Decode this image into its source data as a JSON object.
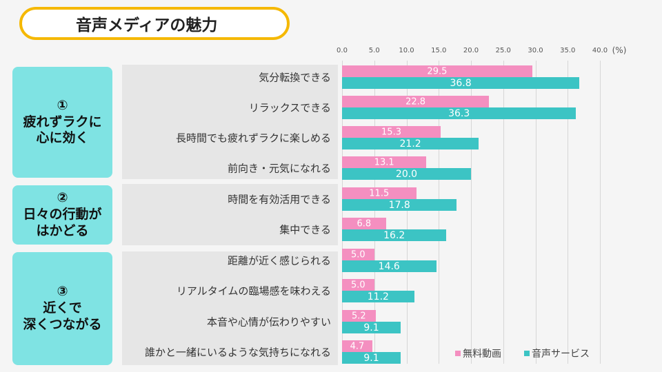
{
  "title": "音声メディアの魅力",
  "groups": [
    {
      "number": "①",
      "lines": [
        "疲れずラクに",
        "心に効く"
      ]
    },
    {
      "number": "②",
      "lines": [
        "日々の行動が",
        "はかどる"
      ]
    },
    {
      "number": "③",
      "lines": [
        "近くで",
        "深くつながる"
      ]
    }
  ],
  "colors": {
    "free_video": "#f48fc0",
    "audio_service": "#3cc4c4",
    "category_box": "#7fe3e3",
    "title_border": "#f5b800"
  },
  "chart_data": {
    "type": "bar",
    "orientation": "horizontal",
    "unit": "(%)",
    "xlim": [
      0,
      40
    ],
    "ticks": [
      "0.0",
      "5.0",
      "10.0",
      "15.0",
      "20.0",
      "25.0",
      "30.0",
      "35.0",
      "40.0"
    ],
    "grid": true,
    "legend_position": "bottom-right",
    "categories": [
      "気分転換できる",
      "リラックスできる",
      "長時間でも疲れずラクに楽しめる",
      "前向き・元気になれる",
      "時間を有効活用できる",
      "集中できる",
      "距離が近く感じられる",
      "リアルタイムの臨場感を味わえる",
      "本音や心情が伝わりやすい",
      "誰かと一緒にいるような気持ちになれる"
    ],
    "series": [
      {
        "name": "無料動画",
        "values": [
          29.5,
          22.8,
          15.3,
          13.1,
          11.5,
          6.8,
          5.0,
          5.0,
          5.2,
          4.7
        ],
        "labels": [
          "29.5",
          "22.8",
          "15.3",
          "13.1",
          "11.5",
          "6.8",
          "5.0",
          "5.0",
          "5.2",
          "4.7"
        ]
      },
      {
        "name": "音声サービス",
        "values": [
          36.8,
          36.3,
          21.2,
          20.0,
          17.8,
          16.2,
          14.6,
          11.2,
          9.1,
          9.1
        ],
        "labels": [
          "36.8",
          "36.3",
          "21.2",
          "20.0",
          "17.8",
          "16.2",
          "14.6",
          "11.2",
          "9.1",
          "9.1"
        ]
      }
    ]
  }
}
